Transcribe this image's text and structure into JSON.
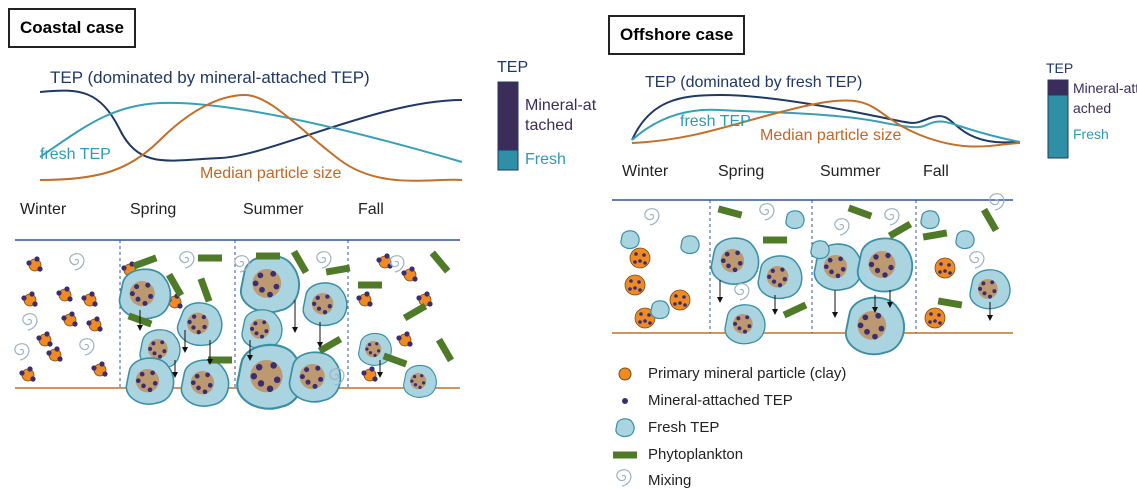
{
  "coastal": {
    "title": "Coastal case",
    "curve_labels": [
      "TEP (dominated by mineral-attached TEP)",
      "fresh TEP",
      "Median particle size"
    ],
    "tep_legend": {
      "title": "TEP",
      "items": [
        "Mineral-attached",
        "Fresh"
      ]
    },
    "seasons": [
      "Winter",
      "Spring",
      "Summer",
      "Fall"
    ]
  },
  "offshore": {
    "title": "Offshore case",
    "curve_labels": [
      "TEP (dominated by fresh TEP)",
      "fresh TEP",
      "Median particle size"
    ],
    "tep_legend": {
      "title": "TEP",
      "items": [
        "Mineral-attached",
        "Fresh"
      ]
    },
    "seasons": [
      "Winter",
      "Spring",
      "Summer",
      "Fall"
    ]
  },
  "legend": [
    "Primary mineral particle (clay)",
    "Mineral-attached TEP",
    "Fresh TEP",
    "Phytoplankton",
    "Mixing"
  ]
}
